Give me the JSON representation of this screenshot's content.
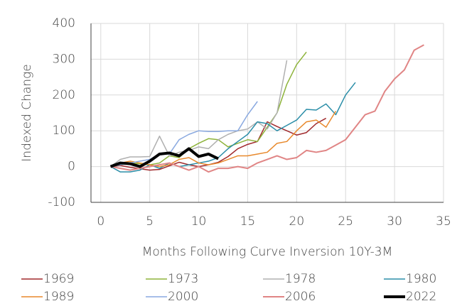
{
  "chart_data": {
    "type": "line",
    "y_label": "Indexed Change",
    "x_label": "Months Following Curve Inversion 10Y-3M",
    "x": [
      1,
      2,
      3,
      4,
      5,
      6,
      7,
      8,
      9,
      10,
      11,
      12,
      13,
      14,
      15,
      16,
      17,
      18,
      19,
      20,
      21,
      22,
      23,
      24,
      25,
      26,
      27,
      28,
      29,
      30,
      31,
      32,
      33
    ],
    "series": [
      {
        "name": "1969",
        "color": "#a0292c",
        "width": 1.5,
        "values": [
          0,
          3,
          -2,
          -6,
          -10,
          -8,
          2,
          12,
          5,
          0,
          5,
          12,
          28,
          50,
          62,
          70,
          125,
          112,
          100,
          88,
          95,
          120,
          135,
          null,
          null,
          null,
          null,
          null,
          null,
          null,
          null,
          null,
          null
        ]
      },
      {
        "name": "1973",
        "color": "#8db33a",
        "width": 1.5,
        "values": [
          0,
          5,
          10,
          8,
          5,
          10,
          30,
          25,
          50,
          65,
          78,
          75,
          55,
          65,
          75,
          70,
          110,
          150,
          230,
          285,
          320,
          null,
          null,
          null,
          null,
          null,
          null,
          null,
          null,
          null,
          null,
          null,
          null
        ]
      },
      {
        "name": "1978",
        "color": "#b0b0b0",
        "width": 1.5,
        "values": [
          0,
          20,
          27,
          27,
          28,
          85,
          30,
          40,
          45,
          55,
          50,
          75,
          90,
          100,
          105,
          125,
          105,
          150,
          297,
          null,
          null,
          null,
          null,
          null,
          null,
          null,
          null,
          null,
          null,
          null,
          null,
          null,
          null
        ]
      },
      {
        "name": "1980",
        "color": "#2b8ea8",
        "width": 1.5,
        "values": [
          0,
          -15,
          -15,
          -10,
          5,
          -5,
          10,
          0,
          5,
          10,
          15,
          25,
          50,
          70,
          90,
          125,
          120,
          100,
          115,
          130,
          160,
          158,
          175,
          145,
          200,
          235,
          null,
          null,
          null,
          null,
          null,
          null,
          null
        ]
      },
      {
        "name": "1989",
        "color": "#e8892c",
        "width": 1.5,
        "values": [
          0,
          10,
          15,
          10,
          5,
          0,
          5,
          20,
          25,
          10,
          5,
          10,
          20,
          30,
          30,
          35,
          40,
          65,
          70,
          100,
          125,
          130,
          110,
          155,
          null,
          null,
          null,
          null,
          null,
          null,
          null,
          null,
          null
        ]
      },
      {
        "name": "2000",
        "color": "#8aa9e0",
        "width": 1.5,
        "values": [
          0,
          5,
          10,
          15,
          20,
          35,
          35,
          75,
          90,
          100,
          98,
          98,
          100,
          100,
          145,
          182,
          null,
          null,
          null,
          null,
          null,
          null,
          null,
          null,
          null,
          null,
          null,
          null,
          null,
          null,
          null,
          null,
          null
        ]
      },
      {
        "name": "2006",
        "color": "#e08585",
        "width": 2,
        "values": [
          0,
          -5,
          -10,
          -5,
          0,
          5,
          10,
          0,
          -10,
          0,
          -15,
          -5,
          -5,
          0,
          -5,
          10,
          20,
          30,
          20,
          25,
          45,
          40,
          45,
          60,
          75,
          110,
          145,
          155,
          210,
          245,
          270,
          325,
          340
        ]
      },
      {
        "name": "2022",
        "color": "#000000",
        "width": 4,
        "values": [
          0,
          10,
          8,
          0,
          15,
          35,
          38,
          30,
          50,
          28,
          35,
          22,
          null,
          null,
          null,
          null,
          null,
          null,
          null,
          null,
          null,
          null,
          null,
          null,
          null,
          null,
          null,
          null,
          null,
          null,
          null,
          null,
          null
        ]
      }
    ],
    "xlim": [
      -1,
      35
    ],
    "xticks": [
      0,
      5,
      10,
      15,
      20,
      25,
      30,
      35
    ],
    "ylim": [
      -100,
      400
    ],
    "yticks": [
      -100,
      0,
      100,
      200,
      300,
      400
    ],
    "grid": true,
    "legend": "bottom"
  }
}
